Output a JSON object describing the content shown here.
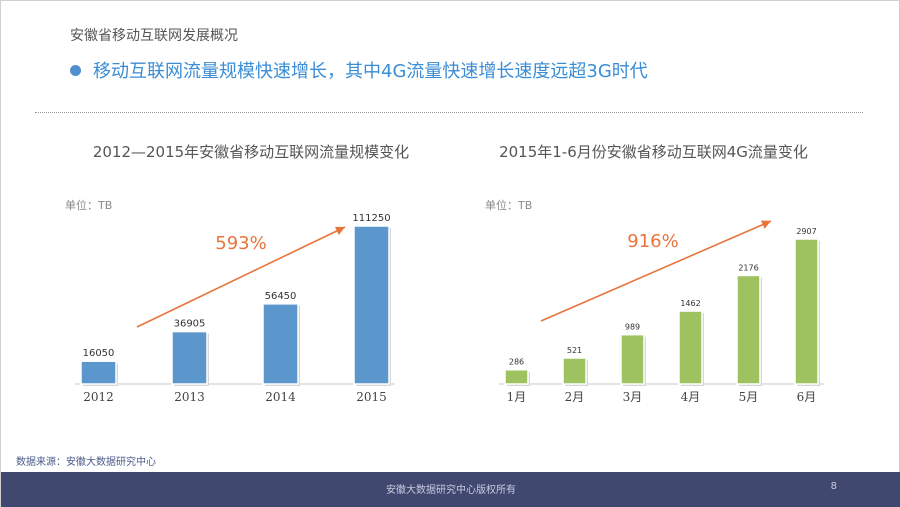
{
  "header": {
    "section_title": "安徽省移动互联网发展概况",
    "headline": "移动互联网流量规模快速增长，其中4G流量快速增长速度远超3G时代"
  },
  "chart_data": [
    {
      "type": "bar",
      "title": "2012—2015年安徽省移动互联网流量规模变化",
      "unit": "单位：TB",
      "categories": [
        "2012",
        "2013",
        "2014",
        "2015"
      ],
      "values": [
        16050,
        36905,
        56450,
        111250
      ],
      "annotation": "593%",
      "bar_color": "#5b96cc",
      "ylim": [
        0,
        111250
      ]
    },
    {
      "type": "bar",
      "title": "2015年1-6月份安徽省移动互联网4G流量变化",
      "unit": "单位：TB",
      "categories": [
        "1月",
        "2月",
        "3月",
        "4月",
        "5月",
        "6月"
      ],
      "values": [
        286,
        521,
        989,
        1462,
        2176,
        2907
      ],
      "annotation": "916%",
      "bar_color": "#9dc25f",
      "ylim": [
        0,
        2907
      ]
    }
  ],
  "footer": {
    "source": "数据来源：安徽大数据研究中心",
    "copyright": "安徽大数据研究中心版权所有",
    "page_number": "8"
  },
  "colors": {
    "accent": "#3a8dd6",
    "annotation": "#e8743b",
    "footer_bg": "#404870"
  }
}
